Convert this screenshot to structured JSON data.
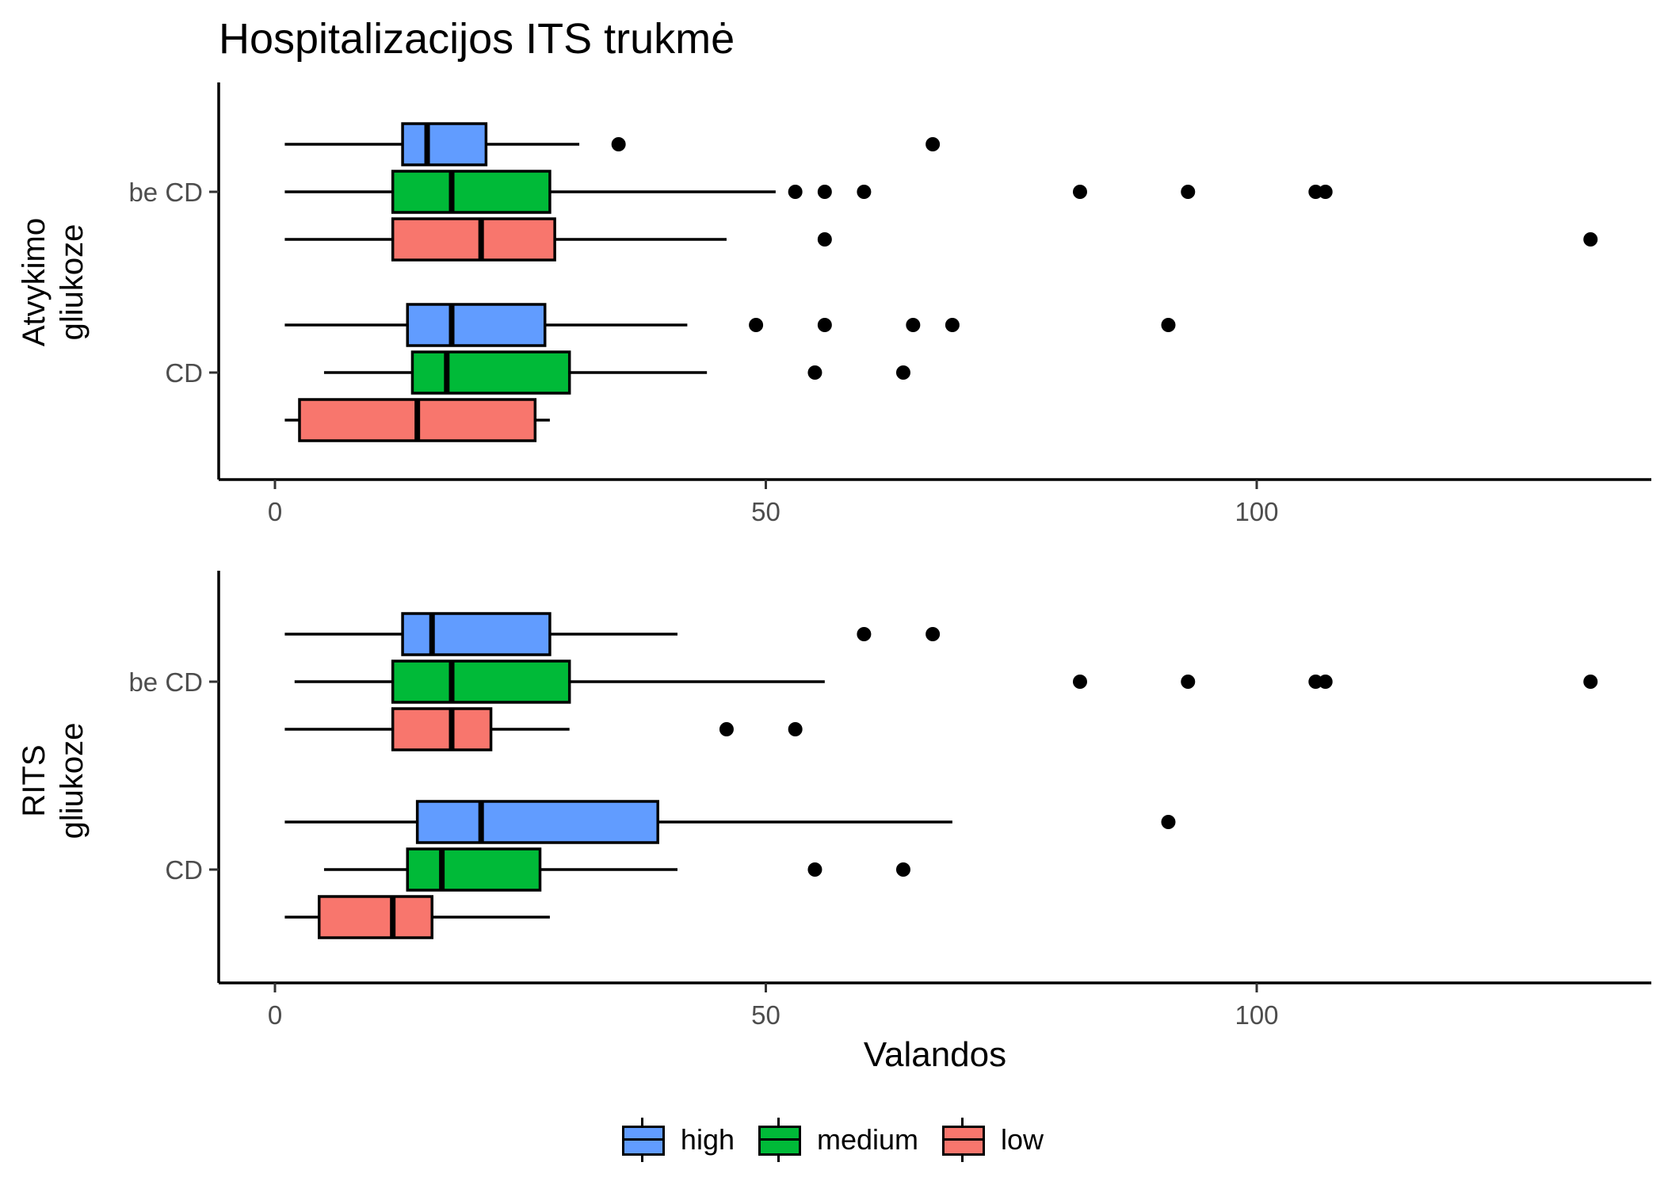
{
  "title": "Hospitalizacijos ITS trukmė",
  "legend": {
    "items": [
      {
        "label": "high",
        "color": "#619CFF"
      },
      {
        "label": "medium",
        "color": "#00BA38"
      },
      {
        "label": "low",
        "color": "#F8766D"
      }
    ]
  },
  "chart_data": [
    {
      "type": "boxplot",
      "orientation": "horizontal",
      "ylabel_line1": "Atvykimo",
      "ylabel_line2": "gliukoze",
      "xlabel": "",
      "xlim": [
        -6,
        141
      ],
      "xticks": [
        0,
        50,
        100
      ],
      "categories": [
        "be CD",
        "CD"
      ],
      "groups": [
        {
          "category": "be CD",
          "series": "high",
          "min": 1,
          "q1": 13,
          "median": 15.5,
          "q3": 21.5,
          "max": 31,
          "outliers": [
            35,
            67
          ]
        },
        {
          "category": "be CD",
          "series": "medium",
          "min": 1,
          "q1": 12,
          "median": 18,
          "q3": 28,
          "max": 51,
          "outliers": [
            53,
            56,
            60,
            82,
            93,
            106,
            107
          ]
        },
        {
          "category": "be CD",
          "series": "low",
          "min": 1,
          "q1": 12,
          "median": 21,
          "q3": 28.5,
          "max": 46,
          "outliers": [
            56,
            134
          ]
        },
        {
          "category": "CD",
          "series": "high",
          "min": 1,
          "q1": 13.5,
          "median": 18,
          "q3": 27.5,
          "max": 42,
          "outliers": [
            49,
            56,
            65,
            69,
            91
          ]
        },
        {
          "category": "CD",
          "series": "medium",
          "min": 5,
          "q1": 14,
          "median": 17.5,
          "q3": 30,
          "max": 44,
          "outliers": [
            55,
            64
          ]
        },
        {
          "category": "CD",
          "series": "low",
          "min": 1,
          "q1": 2.5,
          "median": 14.5,
          "q3": 26.5,
          "max": 28,
          "outliers": []
        }
      ]
    },
    {
      "type": "boxplot",
      "orientation": "horizontal",
      "ylabel_line1": "RITS",
      "ylabel_line2": "gliukoze",
      "xlabel": "Valandos",
      "xlim": [
        -6,
        141
      ],
      "xticks": [
        0,
        50,
        100
      ],
      "categories": [
        "be CD",
        "CD"
      ],
      "groups": [
        {
          "category": "be CD",
          "series": "high",
          "min": 1,
          "q1": 13,
          "median": 16,
          "q3": 28,
          "max": 41,
          "outliers": [
            60,
            67
          ]
        },
        {
          "category": "be CD",
          "series": "medium",
          "min": 2,
          "q1": 12,
          "median": 18,
          "q3": 30,
          "max": 56,
          "outliers": [
            82,
            93,
            106,
            107,
            134
          ]
        },
        {
          "category": "be CD",
          "series": "low",
          "min": 1,
          "q1": 12,
          "median": 18,
          "q3": 22,
          "max": 30,
          "outliers": [
            46,
            53
          ]
        },
        {
          "category": "CD",
          "series": "high",
          "min": 1,
          "q1": 14.5,
          "median": 21,
          "q3": 39,
          "max": 69,
          "outliers": [
            91
          ]
        },
        {
          "category": "CD",
          "series": "medium",
          "min": 5,
          "q1": 13.5,
          "median": 17,
          "q3": 27,
          "max": 41,
          "outliers": [
            55,
            64
          ]
        },
        {
          "category": "CD",
          "series": "low",
          "min": 1,
          "q1": 4.5,
          "median": 12,
          "q3": 16,
          "max": 28,
          "outliers": []
        }
      ]
    }
  ]
}
